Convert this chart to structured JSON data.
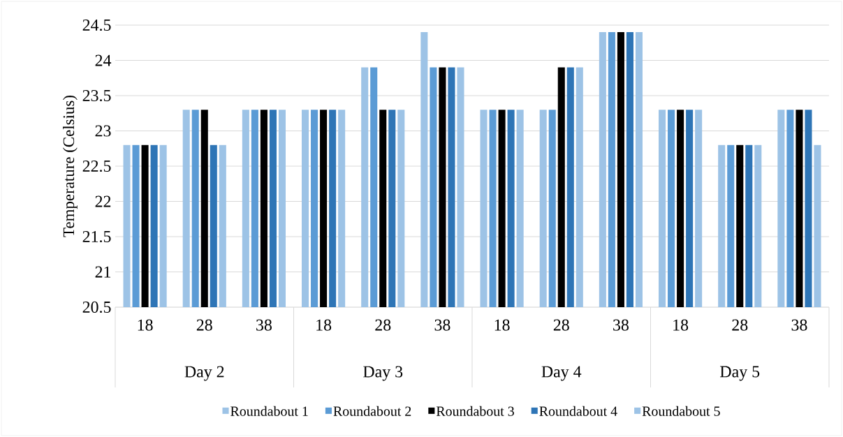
{
  "chart_data": {
    "type": "bar",
    "ylabel": "Temperature (Celsius)",
    "categories": [
      "18",
      "28",
      "38",
      "18",
      "28",
      "38",
      "18",
      "28",
      "38",
      "18",
      "28",
      "38"
    ],
    "annotations": [
      "Day 2",
      "Day 3",
      "Day 4",
      "Day 5"
    ],
    "series": [
      {
        "name": "Roundabout 1",
        "color": "#9dc3e6",
        "values": [
          22.8,
          23.3,
          23.3,
          23.3,
          23.9,
          24.4,
          23.3,
          23.3,
          24.4,
          23.3,
          22.8,
          23.3
        ]
      },
      {
        "name": "Roundabout 2",
        "color": "#5b9bd5",
        "values": [
          22.8,
          23.3,
          23.3,
          23.3,
          23.9,
          23.9,
          23.3,
          23.3,
          24.4,
          23.3,
          22.8,
          23.3
        ]
      },
      {
        "name": "Roundabout 3",
        "color": "#000000",
        "values": [
          22.8,
          23.3,
          23.3,
          23.3,
          23.3,
          23.9,
          23.3,
          23.9,
          24.4,
          23.3,
          22.8,
          23.3
        ]
      },
      {
        "name": "Roundabout 4",
        "color": "#2e75b6",
        "values": [
          22.8,
          22.8,
          23.3,
          23.3,
          23.3,
          23.9,
          23.3,
          23.9,
          24.4,
          23.3,
          22.8,
          23.3
        ]
      },
      {
        "name": "Roundabout 5",
        "color": "#9dc3e6",
        "values": [
          22.8,
          22.8,
          23.3,
          23.3,
          23.3,
          23.9,
          23.3,
          23.9,
          24.4,
          23.3,
          22.8,
          22.8
        ]
      }
    ],
    "ylim": [
      20.5,
      24.5
    ],
    "yticks": [
      20.5,
      21,
      21.5,
      22,
      22.5,
      23,
      23.5,
      24,
      24.5
    ],
    "grid": "y",
    "legend": "bottom"
  }
}
